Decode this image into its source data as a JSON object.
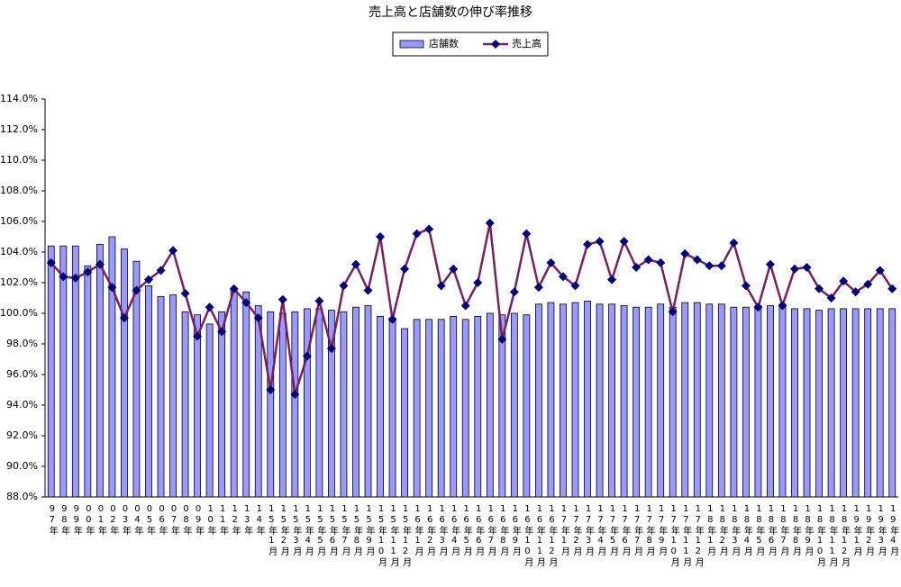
{
  "chart_data": {
    "type": "bar",
    "title": "売上高と店舗数の伸び率推移",
    "categories": [
      "97年",
      "98年",
      "99年",
      "00年",
      "01年",
      "02年",
      "03年",
      "04年",
      "05年",
      "06年",
      "07年",
      "08年",
      "09年",
      "10年",
      "11年",
      "12年",
      "13年",
      "14年",
      "15年1月",
      "15年2月",
      "15年3月",
      "15年4月",
      "15年5月",
      "15年6月",
      "15年7月",
      "15年8月",
      "15年9月",
      "15年10月",
      "15年11月",
      "15年12月",
      "16年1月",
      "16年2月",
      "16年3月",
      "16年4月",
      "16年5月",
      "16年6月",
      "16年7月",
      "16年8月",
      "16年9月",
      "16年10月",
      "16年11月",
      "16年12月",
      "17年1月",
      "17年2月",
      "17年3月",
      "17年4月",
      "17年5月",
      "17年6月",
      "17年7月",
      "17年8月",
      "17年9月",
      "17年10月",
      "17年11月",
      "17年12月",
      "18年1月",
      "18年2月",
      "18年3月",
      "18年4月",
      "18年5月",
      "18年6月",
      "18年7月",
      "18年8月",
      "18年9月",
      "18年10月",
      "18年11月",
      "18年12月",
      "19年1月",
      "19年2月",
      "19年3月",
      "19年4月"
    ],
    "series": [
      {
        "name": "店舗数",
        "type": "bar",
        "color": "#9999ff",
        "values": [
          104.4,
          104.4,
          104.4,
          103.1,
          104.5,
          105.0,
          104.2,
          103.4,
          101.8,
          101.1,
          101.2,
          100.1,
          99.9,
          99.3,
          100.1,
          101.5,
          101.4,
          100.5,
          100.1,
          100.0,
          100.1,
          100.3,
          100.3,
          100.2,
          100.1,
          100.4,
          100.5,
          99.8,
          99.7,
          99.0,
          99.6,
          99.6,
          99.6,
          99.8,
          99.6,
          99.8,
          100.0,
          99.9,
          100.0,
          99.9,
          100.6,
          100.7,
          100.6,
          100.7,
          100.8,
          100.6,
          100.6,
          100.5,
          100.4,
          100.4,
          100.6,
          100.4,
          100.7,
          100.7,
          100.6,
          100.6,
          100.4,
          100.4,
          100.5,
          100.5,
          100.6,
          100.3,
          100.3,
          100.2,
          100.3,
          100.3,
          100.3,
          100.3,
          100.3,
          100.3
        ]
      },
      {
        "name": "売上高",
        "type": "line",
        "color": "#7a1f5e",
        "marker_color": "#000080",
        "values": [
          103.3,
          102.4,
          102.3,
          102.7,
          103.2,
          101.7,
          99.7,
          101.5,
          102.2,
          102.8,
          104.1,
          101.3,
          98.5,
          100.4,
          98.8,
          101.6,
          100.7,
          99.7,
          95.0,
          100.9,
          94.7,
          97.2,
          100.8,
          97.7,
          101.8,
          103.2,
          101.5,
          105.0,
          99.6,
          102.9,
          105.2,
          105.5,
          101.8,
          102.9,
          100.5,
          102.0,
          105.9,
          98.3,
          101.4,
          105.2,
          101.7,
          103.3,
          102.4,
          101.8,
          104.5,
          104.7,
          102.2,
          104.7,
          103.0,
          103.5,
          103.3,
          100.1,
          103.9,
          103.5,
          103.1,
          103.1,
          104.6,
          101.8,
          100.4,
          103.2,
          100.5,
          102.9,
          103.0,
          101.6,
          101.0,
          102.1,
          101.4,
          101.9,
          102.8,
          101.6
        ]
      }
    ],
    "ylim": [
      88,
      114
    ],
    "yticks": [
      {
        "value": 88,
        "label": "88.0%"
      },
      {
        "value": 90,
        "label": "90.0%"
      },
      {
        "value": 92,
        "label": "92.0%"
      },
      {
        "value": 94,
        "label": "94.0%"
      },
      {
        "value": 96,
        "label": "96.0%"
      },
      {
        "value": 98,
        "label": "98.0%"
      },
      {
        "value": 100,
        "label": "100.0%"
      },
      {
        "value": 102,
        "label": "102.0%"
      },
      {
        "value": 104,
        "label": "104.0%"
      },
      {
        "value": 106,
        "label": "106.0%"
      },
      {
        "value": 108,
        "label": "108.0%"
      },
      {
        "value": 110,
        "label": "110.0%"
      },
      {
        "value": 112,
        "label": "112.0%"
      },
      {
        "value": 114,
        "label": "114.0%"
      }
    ],
    "grid": false,
    "legend": "top"
  }
}
